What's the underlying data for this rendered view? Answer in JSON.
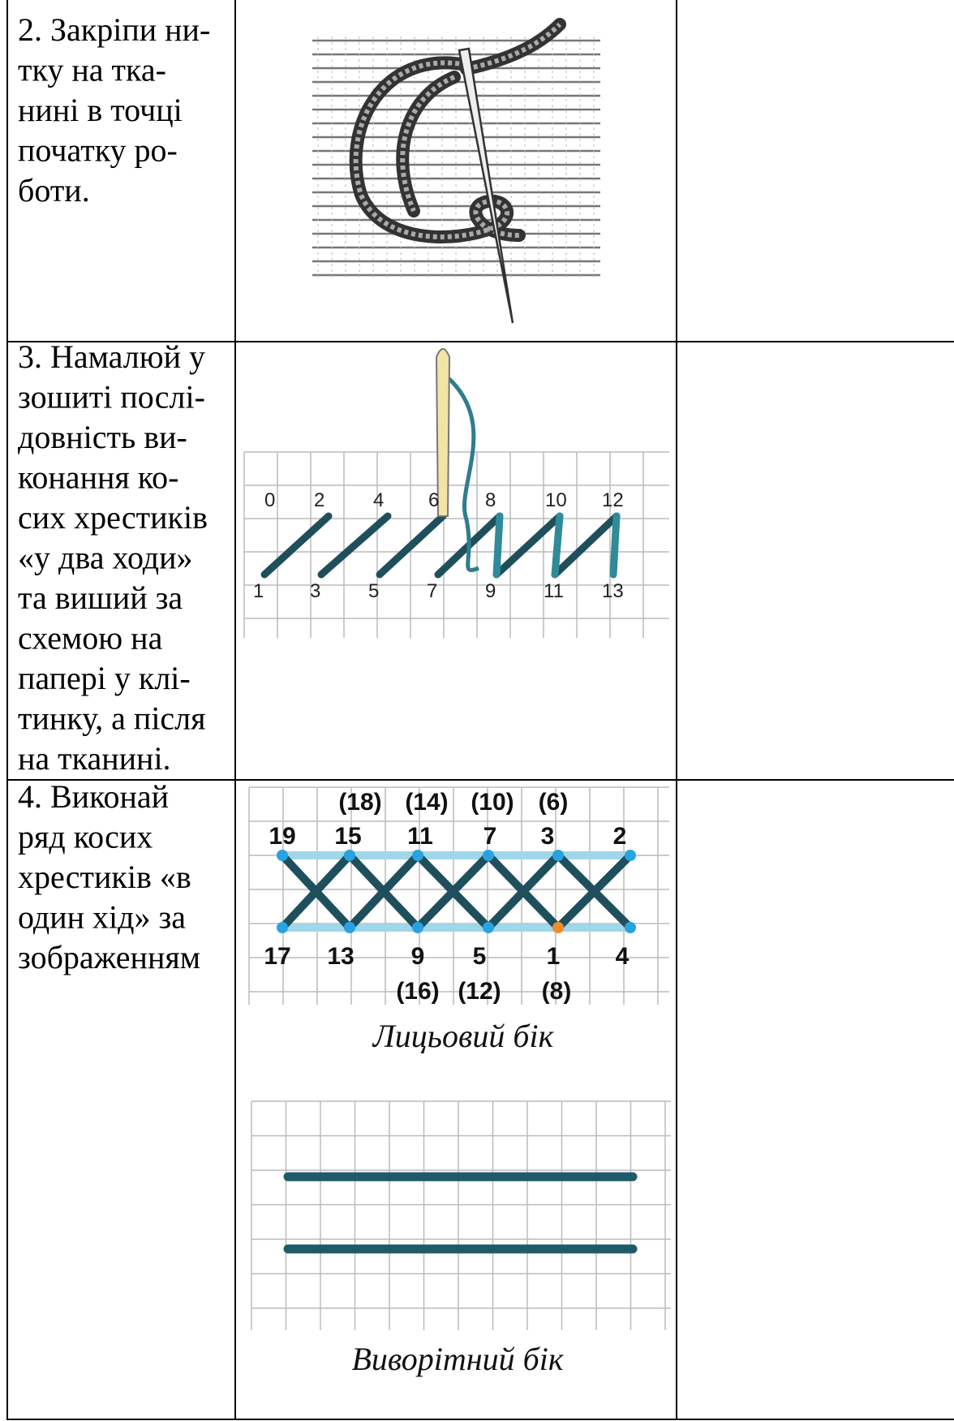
{
  "table": {
    "rows": [
      {
        "instruction": [
          "2. Закріпи ни-",
          "тку на тка-",
          "нині в точці",
          "початку ро-",
          "боти."
        ]
      },
      {
        "instruction": [
          "3. Намалюй у",
          "зошиті послі-",
          "довність ви-",
          "конання ко-",
          "сих хрестиків",
          "«у два ходи»",
          "та виший за",
          "схемою на",
          "папері у клі-",
          "тинку, а після",
          "на тканині."
        ]
      },
      {
        "instruction": [
          "4. Виконай",
          "ряд косих",
          "хрестиків «в",
          "один хід» за",
          "зображенням"
        ]
      }
    ]
  },
  "figures": {
    "two_pass": {
      "top_labels": [
        "0",
        "2",
        "4",
        "6",
        "8",
        "10",
        "12"
      ],
      "bottom_labels": [
        "1",
        "3",
        "5",
        "7",
        "9",
        "11",
        "13"
      ]
    },
    "one_pass_front": {
      "top_parens": [
        "(18)",
        "(14)",
        "(10)",
        "(6)"
      ],
      "top_labels": [
        "19",
        "15",
        "11",
        "7",
        "3",
        "2"
      ],
      "bottom_labels": [
        "17",
        "13",
        "9",
        "5",
        "1",
        "4"
      ],
      "bottom_parens": [
        "(16)",
        "(12)",
        "(8)"
      ],
      "caption": "Лицьовий бік"
    },
    "one_pass_back": {
      "caption": "Виворітний бік"
    }
  }
}
